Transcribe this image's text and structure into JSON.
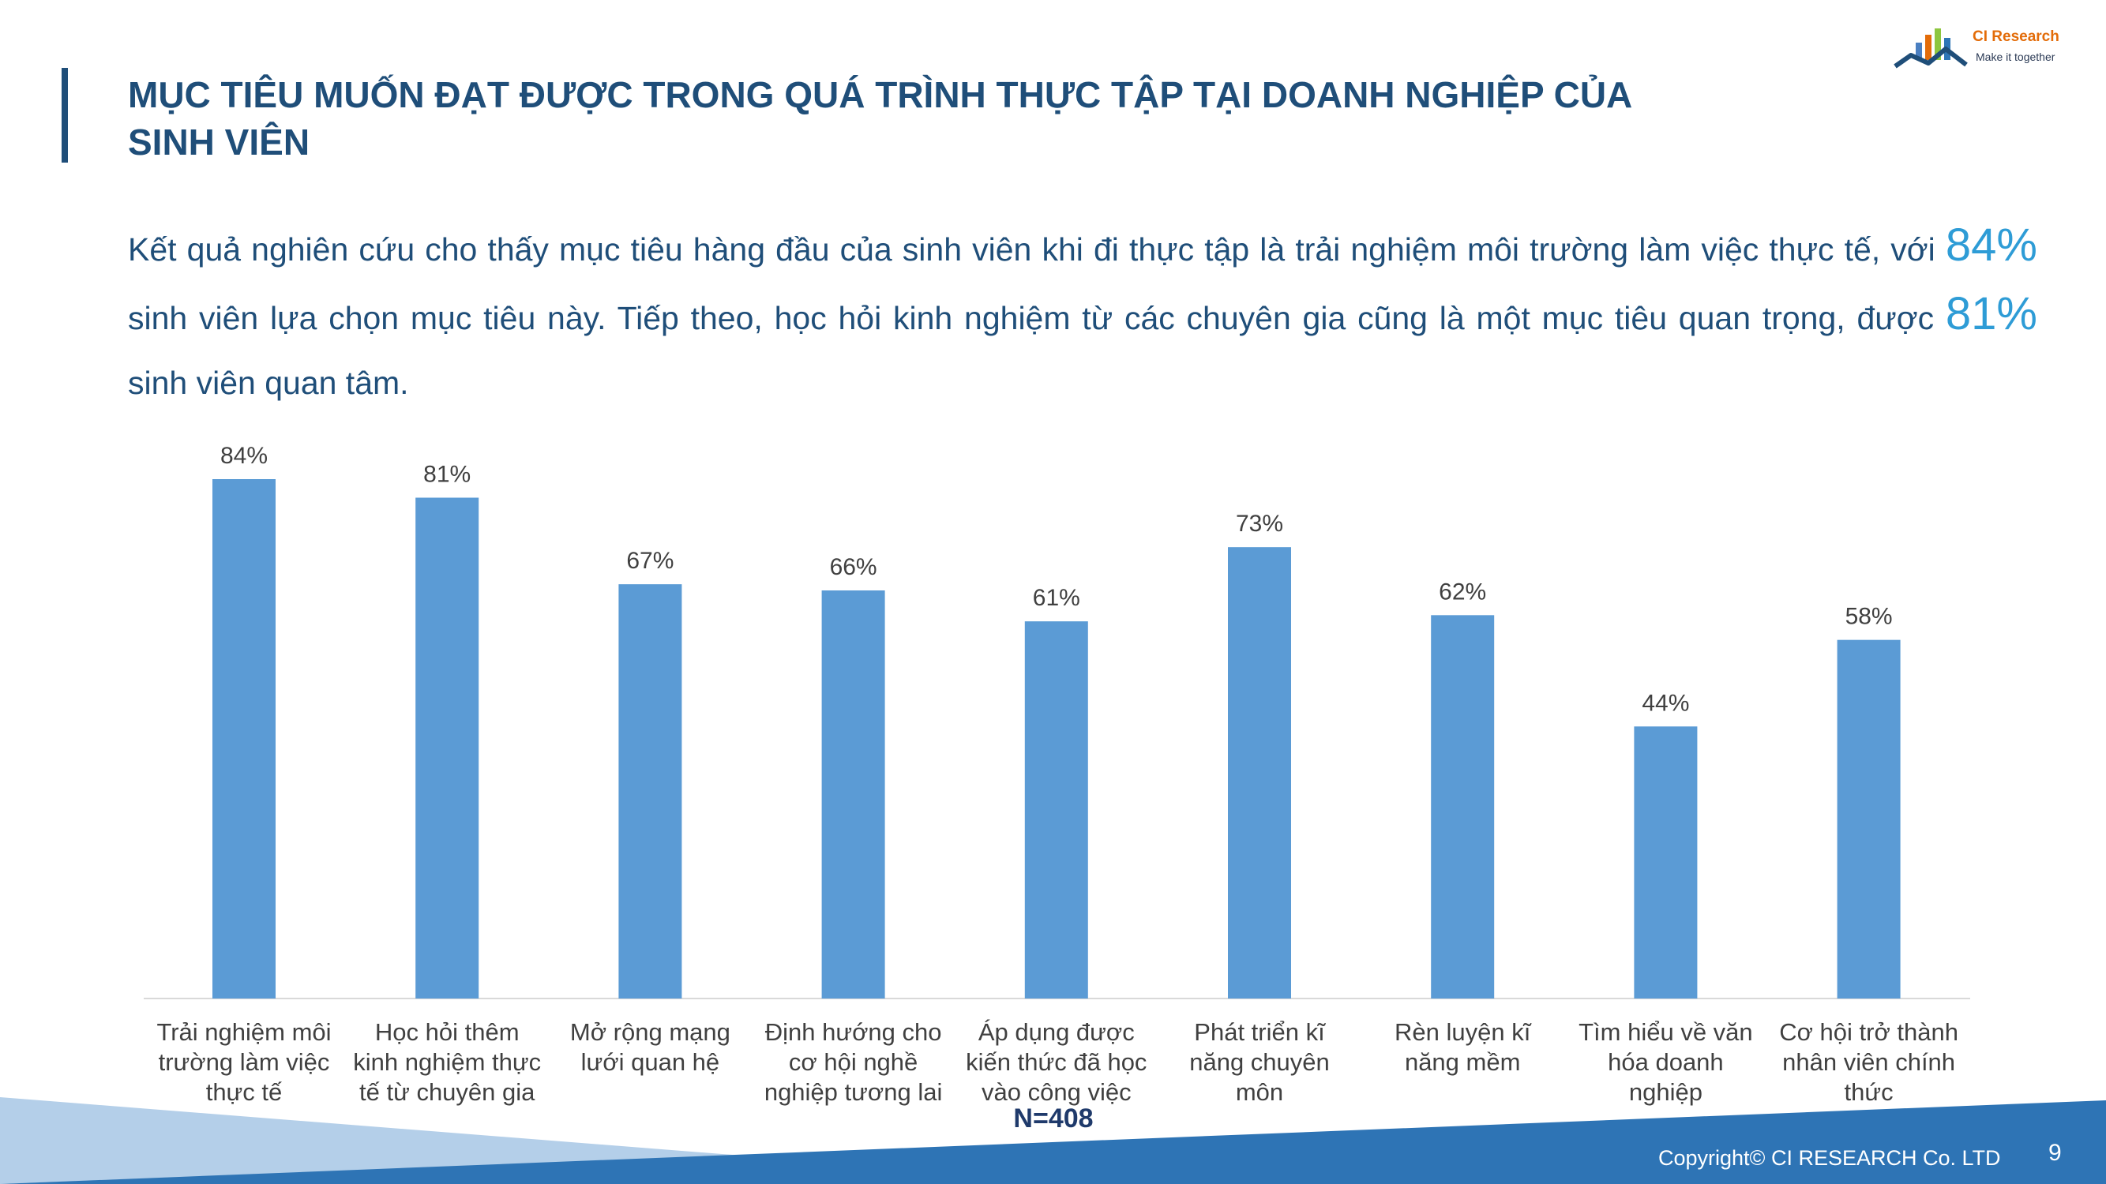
{
  "header": {
    "title_line1": "MỤC TIÊU MUỐN ĐẠT ĐƯỢC TRONG QUÁ TRÌNH THỰC TẬP TẠI DOANH NGHIỆP CỦA",
    "title_line2": "SINH VIÊN"
  },
  "logo": {
    "name": "CI Research",
    "tagline": "Make it together",
    "icon": "bar-chart-roof-icon"
  },
  "intro": {
    "part1": "Kết quả nghiên cứu cho thấy mục tiêu hàng đầu của sinh viên khi đi thực tập là trải nghiệm môi trường làm việc thực tế, với ",
    "highlight1": "84%",
    "part2": " sinh viên lựa chọn mục tiêu này. Tiếp theo, học hỏi kinh nghiệm từ các chuyên gia cũng là một mục tiêu quan trọng, được ",
    "highlight2": "81%",
    "part3": " sinh viên quan tâm."
  },
  "chart_data": {
    "type": "bar",
    "title": "",
    "xlabel": "",
    "ylabel": "",
    "ylim": [
      0,
      100
    ],
    "grid": false,
    "categories": [
      [
        "Trải nghiệm môi",
        "trường làm việc",
        "thực tế"
      ],
      [
        "Học hỏi thêm",
        "kinh nghiệm thực",
        "tế từ chuyên gia"
      ],
      [
        "Mở rộng mạng",
        "lưới quan hệ"
      ],
      [
        "Định hướng cho",
        "cơ hội nghề",
        "nghiệp tương lai"
      ],
      [
        "Áp dụng được",
        "kiến thức đã học",
        "vào công việc"
      ],
      [
        "Phát triển kĩ",
        "năng chuyên",
        "môn"
      ],
      [
        "Rèn luyện kĩ",
        "năng mềm"
      ],
      [
        "Tìm hiểu về văn",
        "hóa doanh",
        "nghiệp"
      ],
      [
        "Cơ hội trở thành",
        "nhân viên chính",
        "thức"
      ]
    ],
    "values": [
      84,
      81,
      67,
      66,
      61,
      73,
      62,
      44,
      58
    ],
    "value_labels": [
      "84%",
      "81%",
      "67%",
      "66%",
      "61%",
      "73%",
      "62%",
      "44%",
      "58%"
    ],
    "bar_color": "#5b9bd5",
    "sample_size": "N=408"
  },
  "footer": {
    "copyright": "Copyright© CI RESEARCH Co. LTD",
    "page": "9"
  },
  "colors": {
    "title": "#1f4e79",
    "accent": "#2e9cd6",
    "band_dark": "#2e74b5",
    "band_light": "#b4cfe9"
  }
}
